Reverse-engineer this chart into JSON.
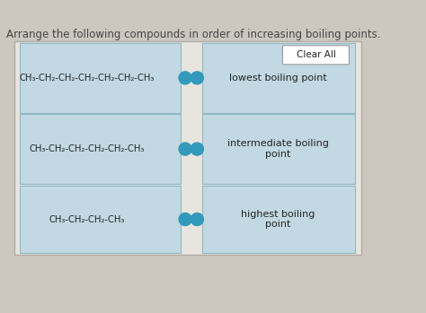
{
  "title": "Arrange the following compounds in order of increasing boiling points.",
  "title_fontsize": 8.5,
  "bg_color": "#ccc8c0",
  "outer_box_bg": "#e8e5de",
  "outer_box_edge": "#b0aca4",
  "cell_bg": "#c2d9e3",
  "cell_edge": "#90b8c8",
  "clear_all_label": "Clear All",
  "clear_all_bg": "white",
  "clear_all_edge": "#aaaaaa",
  "left_compounds": [
    "CH₃-CH₂-CH₂-CH₂-CH₂-CH₂-CH₃",
    "CH₃-CH₂-CH₂-CH₂-CH₂-CH₃",
    "CH₃-CH₂-CH₂-CH₃"
  ],
  "right_labels": [
    "lowest boiling point",
    "intermediate boiling\npoint",
    "highest boiling\npoint"
  ],
  "connector_color": "#3399bb",
  "font_color": "#222222",
  "label_fontsize": 8.0,
  "compound_fontsize": 7.2,
  "title_font_color": "#444444"
}
